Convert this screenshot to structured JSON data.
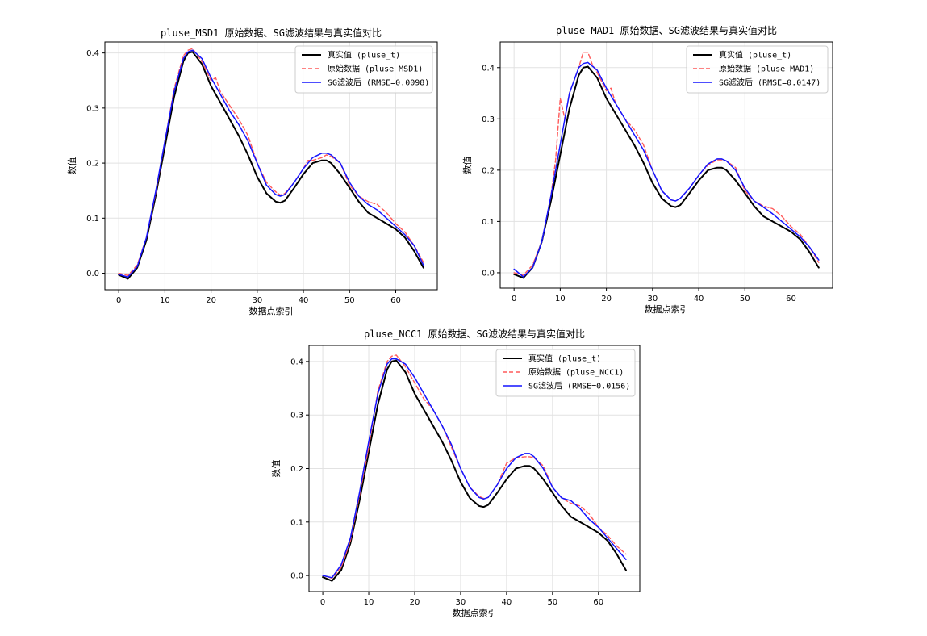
{
  "chart_data": [
    {
      "type": "line",
      "title": "pluse_MSD1 原始数据、SG滤波结果与真实值对比",
      "xlabel": "数据点索引",
      "ylabel": "数值",
      "xlim": [
        -3,
        69
      ],
      "ylim": [
        -0.03,
        0.42
      ],
      "xticks": [
        0,
        10,
        20,
        30,
        40,
        50,
        60
      ],
      "yticks": [
        0.0,
        0.1,
        0.2,
        0.3,
        0.4
      ],
      "grid": true,
      "legend_position": "top-right",
      "series": [
        {
          "name": "真实值 (pluse_t)",
          "color": "#000000",
          "style": "solid",
          "width": 2,
          "x": [
            0,
            2,
            4,
            6,
            8,
            10,
            12,
            14,
            15,
            16,
            18,
            20,
            22,
            24,
            26,
            28,
            30,
            32,
            34,
            35,
            36,
            38,
            40,
            42,
            44,
            45,
            46,
            48,
            50,
            52,
            54,
            56,
            58,
            60,
            62,
            64,
            66
          ],
          "y": [
            -0.003,
            -0.01,
            0.01,
            0.06,
            0.14,
            0.23,
            0.32,
            0.385,
            0.4,
            0.402,
            0.38,
            0.34,
            0.31,
            0.28,
            0.25,
            0.215,
            0.175,
            0.145,
            0.13,
            0.128,
            0.132,
            0.155,
            0.18,
            0.2,
            0.205,
            0.205,
            0.2,
            0.18,
            0.155,
            0.13,
            0.11,
            0.1,
            0.09,
            0.08,
            0.065,
            0.04,
            0.01
          ]
        },
        {
          "name": "原始数据 (pluse_MSD1)",
          "color": "#ff5a5a",
          "style": "dashed",
          "width": 1.4,
          "x": [
            0,
            2,
            4,
            6,
            8,
            10,
            12,
            14,
            15,
            16,
            18,
            20,
            21,
            22,
            24,
            26,
            28,
            30,
            32,
            34,
            35,
            36,
            38,
            40,
            41,
            42,
            44,
            45,
            46,
            48,
            50,
            52,
            54,
            56,
            58,
            60,
            62,
            64,
            66
          ],
          "y": [
            0.0,
            -0.004,
            0.015,
            0.065,
            0.145,
            0.24,
            0.335,
            0.395,
            0.405,
            0.408,
            0.385,
            0.35,
            0.355,
            0.33,
            0.305,
            0.28,
            0.25,
            0.2,
            0.165,
            0.148,
            0.142,
            0.145,
            0.165,
            0.19,
            0.205,
            0.205,
            0.21,
            0.215,
            0.212,
            0.2,
            0.16,
            0.14,
            0.13,
            0.125,
            0.11,
            0.09,
            0.075,
            0.05,
            0.02
          ]
        },
        {
          "name": "SG滤波后 (RMSE=0.0098)",
          "color": "#1414ff",
          "style": "solid",
          "width": 1.5,
          "x": [
            0,
            2,
            4,
            6,
            8,
            10,
            12,
            14,
            15,
            16,
            18,
            20,
            22,
            24,
            26,
            28,
            30,
            32,
            34,
            35,
            36,
            38,
            40,
            42,
            44,
            45,
            46,
            48,
            50,
            52,
            54,
            56,
            58,
            60,
            62,
            64,
            66
          ],
          "y": [
            -0.002,
            -0.007,
            0.012,
            0.065,
            0.148,
            0.24,
            0.33,
            0.39,
            0.402,
            0.405,
            0.39,
            0.355,
            0.325,
            0.295,
            0.27,
            0.24,
            0.2,
            0.16,
            0.143,
            0.14,
            0.143,
            0.165,
            0.19,
            0.21,
            0.218,
            0.218,
            0.215,
            0.2,
            0.165,
            0.14,
            0.125,
            0.115,
            0.1,
            0.085,
            0.07,
            0.05,
            0.015
          ]
        }
      ]
    },
    {
      "type": "line",
      "title": "pluse_MAD1 原始数据、SG滤波结果与真实值对比",
      "xlabel": "数据点索引",
      "ylabel": "数值",
      "xlim": [
        -3,
        69
      ],
      "ylim": [
        -0.03,
        0.45
      ],
      "xticks": [
        0,
        10,
        20,
        30,
        40,
        50,
        60
      ],
      "yticks": [
        0.0,
        0.1,
        0.2,
        0.3,
        0.4
      ],
      "grid": true,
      "legend_position": "top-right",
      "series": [
        {
          "name": "真实值 (pluse_t)",
          "color": "#000000",
          "style": "solid",
          "width": 2,
          "x": [
            0,
            2,
            4,
            6,
            8,
            10,
            12,
            14,
            15,
            16,
            18,
            20,
            22,
            24,
            26,
            28,
            30,
            32,
            34,
            35,
            36,
            38,
            40,
            42,
            44,
            45,
            46,
            48,
            50,
            52,
            54,
            56,
            58,
            60,
            62,
            64,
            66
          ],
          "y": [
            -0.003,
            -0.01,
            0.01,
            0.06,
            0.14,
            0.23,
            0.32,
            0.385,
            0.4,
            0.402,
            0.38,
            0.34,
            0.31,
            0.28,
            0.25,
            0.215,
            0.175,
            0.145,
            0.13,
            0.128,
            0.132,
            0.155,
            0.18,
            0.2,
            0.205,
            0.205,
            0.2,
            0.18,
            0.155,
            0.13,
            0.11,
            0.1,
            0.09,
            0.08,
            0.065,
            0.04,
            0.01
          ]
        },
        {
          "name": "原始数据 (pluse_MAD1)",
          "color": "#ff5a5a",
          "style": "dashed",
          "width": 1.4,
          "x": [
            0,
            2,
            4,
            6,
            8,
            9,
            10,
            11,
            12,
            14,
            15,
            16,
            17,
            18,
            20,
            21,
            22,
            24,
            26,
            28,
            30,
            32,
            34,
            35,
            36,
            38,
            40,
            42,
            44,
            45,
            46,
            48,
            50,
            52,
            54,
            56,
            58,
            60,
            62,
            64,
            66
          ],
          "y": [
            0.0,
            -0.005,
            0.015,
            0.06,
            0.15,
            0.22,
            0.34,
            0.3,
            0.35,
            0.4,
            0.43,
            0.43,
            0.405,
            0.39,
            0.355,
            0.36,
            0.33,
            0.3,
            0.28,
            0.25,
            0.2,
            0.16,
            0.142,
            0.14,
            0.145,
            0.165,
            0.19,
            0.21,
            0.22,
            0.22,
            0.218,
            0.205,
            0.16,
            0.14,
            0.13,
            0.125,
            0.11,
            0.09,
            0.075,
            0.05,
            0.02
          ]
        },
        {
          "name": "SG滤波后 (RMSE=0.0147)",
          "color": "#1414ff",
          "style": "solid",
          "width": 1.5,
          "x": [
            0,
            2,
            4,
            6,
            8,
            10,
            12,
            14,
            15,
            16,
            18,
            20,
            22,
            24,
            26,
            28,
            30,
            32,
            34,
            35,
            36,
            38,
            40,
            42,
            44,
            45,
            46,
            48,
            50,
            52,
            54,
            56,
            58,
            60,
            62,
            64,
            66
          ],
          "y": [
            0.007,
            -0.008,
            0.01,
            0.06,
            0.15,
            0.25,
            0.35,
            0.4,
            0.408,
            0.41,
            0.395,
            0.36,
            0.33,
            0.3,
            0.27,
            0.24,
            0.2,
            0.16,
            0.142,
            0.14,
            0.145,
            0.165,
            0.19,
            0.212,
            0.222,
            0.222,
            0.218,
            0.2,
            0.165,
            0.14,
            0.128,
            0.115,
            0.1,
            0.085,
            0.07,
            0.05,
            0.025
          ]
        }
      ]
    },
    {
      "type": "line",
      "title": "pluse_NCC1 原始数据、SG滤波结果与真实值对比",
      "xlabel": "数据点索引",
      "ylabel": "数值",
      "xlim": [
        -3,
        69
      ],
      "ylim": [
        -0.03,
        0.43
      ],
      "xticks": [
        0,
        10,
        20,
        30,
        40,
        50,
        60
      ],
      "yticks": [
        0.0,
        0.1,
        0.2,
        0.3,
        0.4
      ],
      "grid": true,
      "legend_position": "top-right",
      "series": [
        {
          "name": "真实值 (pluse_t)",
          "color": "#000000",
          "style": "solid",
          "width": 2,
          "x": [
            0,
            2,
            4,
            6,
            8,
            10,
            12,
            14,
            15,
            16,
            18,
            20,
            22,
            24,
            26,
            28,
            30,
            32,
            34,
            35,
            36,
            38,
            40,
            42,
            44,
            45,
            46,
            48,
            50,
            52,
            54,
            56,
            58,
            60,
            62,
            64,
            66
          ],
          "y": [
            -0.003,
            -0.01,
            0.01,
            0.06,
            0.14,
            0.23,
            0.32,
            0.385,
            0.4,
            0.402,
            0.38,
            0.34,
            0.31,
            0.28,
            0.25,
            0.215,
            0.175,
            0.145,
            0.13,
            0.128,
            0.132,
            0.155,
            0.18,
            0.2,
            0.205,
            0.205,
            0.2,
            0.18,
            0.155,
            0.13,
            0.11,
            0.1,
            0.09,
            0.08,
            0.065,
            0.04,
            0.01
          ]
        },
        {
          "name": "原始数据 (pluse_NCC1)",
          "color": "#ff5a5a",
          "style": "dashed",
          "width": 1.4,
          "x": [
            0,
            2,
            4,
            6,
            8,
            10,
            12,
            14,
            15,
            16,
            18,
            20,
            22,
            24,
            26,
            28,
            30,
            32,
            34,
            35,
            36,
            38,
            40,
            42,
            44,
            45,
            46,
            48,
            50,
            52,
            54,
            56,
            58,
            60,
            62,
            64,
            66
          ],
          "y": [
            0.0,
            -0.005,
            0.015,
            0.065,
            0.15,
            0.24,
            0.345,
            0.4,
            0.41,
            0.412,
            0.39,
            0.36,
            0.33,
            0.31,
            0.28,
            0.24,
            0.2,
            0.165,
            0.148,
            0.144,
            0.146,
            0.17,
            0.21,
            0.22,
            0.222,
            0.222,
            0.22,
            0.205,
            0.165,
            0.145,
            0.135,
            0.13,
            0.115,
            0.09,
            0.075,
            0.055,
            0.04
          ]
        },
        {
          "name": "SG滤波后 (RMSE=0.0156)",
          "color": "#1414ff",
          "style": "solid",
          "width": 1.5,
          "x": [
            0,
            2,
            4,
            6,
            8,
            10,
            12,
            14,
            15,
            16,
            18,
            20,
            22,
            24,
            26,
            28,
            30,
            32,
            34,
            35,
            36,
            38,
            40,
            42,
            44,
            45,
            46,
            48,
            50,
            52,
            54,
            56,
            58,
            60,
            62,
            64,
            66
          ],
          "y": [
            0.0,
            -0.004,
            0.02,
            0.07,
            0.155,
            0.25,
            0.34,
            0.395,
            0.405,
            0.405,
            0.395,
            0.37,
            0.34,
            0.31,
            0.28,
            0.245,
            0.2,
            0.165,
            0.146,
            0.143,
            0.146,
            0.17,
            0.2,
            0.22,
            0.228,
            0.228,
            0.222,
            0.2,
            0.165,
            0.145,
            0.14,
            0.125,
            0.105,
            0.09,
            0.07,
            0.05,
            0.03
          ]
        }
      ]
    }
  ]
}
